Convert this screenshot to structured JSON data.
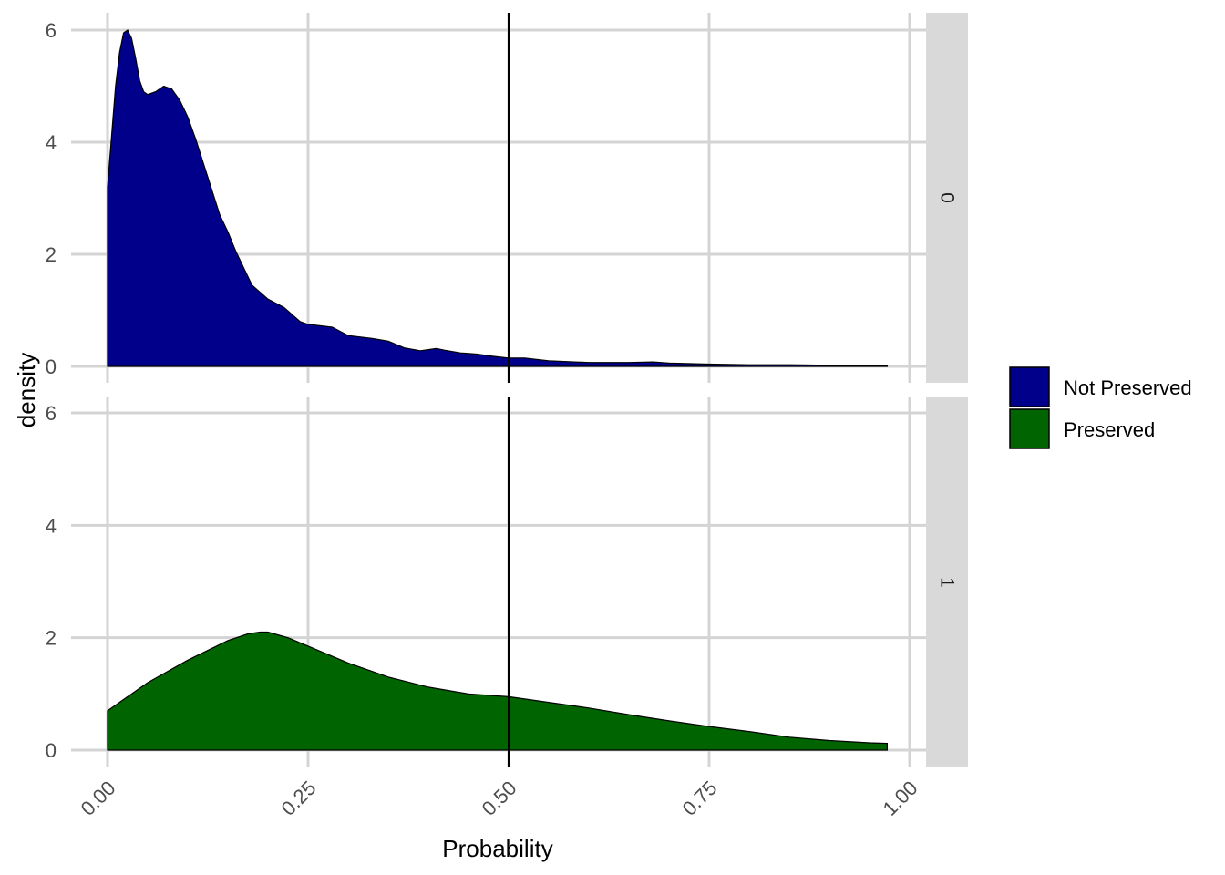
{
  "chart_data": {
    "type": "area",
    "xlabel": "Probability",
    "ylabel": "density",
    "xlim": [
      0,
      1
    ],
    "ylim": [
      0,
      6
    ],
    "x_ticks": [
      "0.00",
      "0.25",
      "0.50",
      "0.75",
      "1.00"
    ],
    "y_ticks": [
      "0",
      "2",
      "4",
      "6"
    ],
    "vline": 0.5,
    "grid": true,
    "legend_position": "right",
    "panels": [
      {
        "strip": "0",
        "series": "Not Preserved",
        "color": "#00008B",
        "x": [
          0.0,
          0.005,
          0.01,
          0.015,
          0.02,
          0.025,
          0.03,
          0.035,
          0.04,
          0.045,
          0.05,
          0.06,
          0.07,
          0.08,
          0.09,
          0.1,
          0.11,
          0.12,
          0.13,
          0.14,
          0.15,
          0.16,
          0.18,
          0.2,
          0.22,
          0.24,
          0.25,
          0.28,
          0.3,
          0.33,
          0.35,
          0.37,
          0.39,
          0.41,
          0.42,
          0.44,
          0.46,
          0.48,
          0.5,
          0.52,
          0.55,
          0.6,
          0.65,
          0.68,
          0.7,
          0.75,
          0.8,
          0.85,
          0.9,
          0.95,
          0.972
        ],
        "y": [
          3.2,
          4.1,
          5.0,
          5.6,
          5.95,
          6.0,
          5.85,
          5.5,
          5.1,
          4.9,
          4.85,
          4.9,
          5.0,
          4.95,
          4.75,
          4.45,
          4.05,
          3.6,
          3.15,
          2.7,
          2.4,
          2.05,
          1.45,
          1.2,
          1.05,
          0.8,
          0.75,
          0.7,
          0.55,
          0.5,
          0.45,
          0.33,
          0.28,
          0.32,
          0.29,
          0.24,
          0.22,
          0.18,
          0.15,
          0.15,
          0.1,
          0.07,
          0.07,
          0.08,
          0.06,
          0.04,
          0.03,
          0.03,
          0.02,
          0.02,
          0.02
        ]
      },
      {
        "strip": "1",
        "series": "Preserved",
        "color": "#006400",
        "x": [
          0.0,
          0.025,
          0.05,
          0.1,
          0.15,
          0.175,
          0.19,
          0.2,
          0.225,
          0.25,
          0.3,
          0.35,
          0.4,
          0.45,
          0.5,
          0.55,
          0.6,
          0.65,
          0.7,
          0.75,
          0.8,
          0.85,
          0.9,
          0.95,
          0.972
        ],
        "y": [
          0.7,
          0.95,
          1.2,
          1.6,
          1.95,
          2.07,
          2.1,
          2.1,
          2.0,
          1.85,
          1.55,
          1.3,
          1.12,
          1.0,
          0.95,
          0.85,
          0.75,
          0.63,
          0.52,
          0.42,
          0.33,
          0.23,
          0.17,
          0.13,
          0.12
        ]
      }
    ],
    "legend": [
      {
        "label": "Not Preserved",
        "color": "#00008B"
      },
      {
        "label": "Preserved",
        "color": "#006400"
      }
    ]
  }
}
